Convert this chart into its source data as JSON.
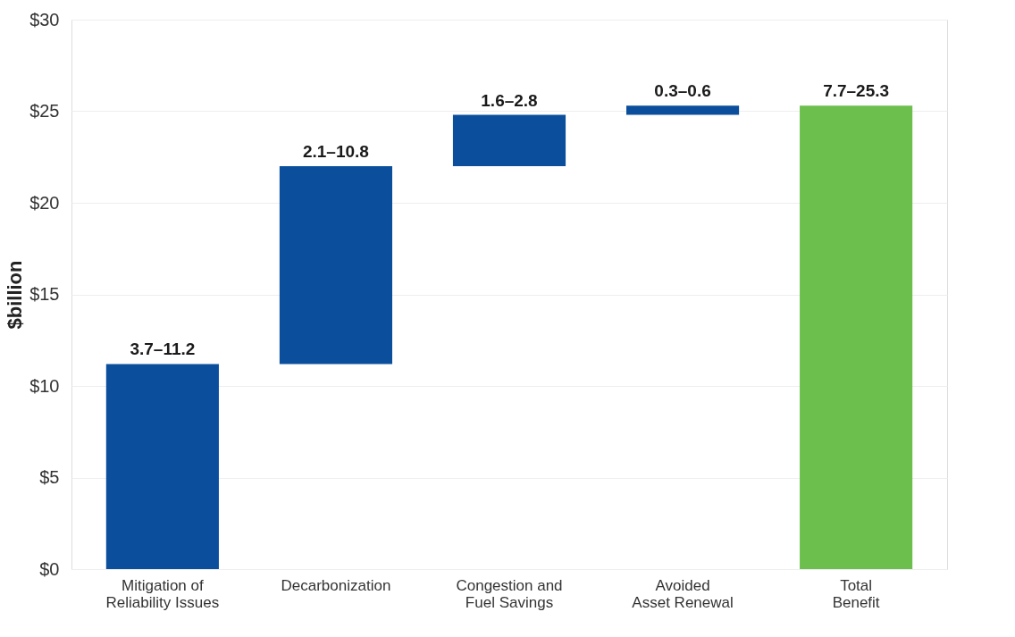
{
  "chart_data": {
    "type": "bar",
    "ylabel": "$billion",
    "categories": [
      "Mitigation of Reliability Issues",
      "Decarbonization",
      "Congestion and Fuel Savings",
      "Avoided Asset Renewal",
      "Total Benefit"
    ],
    "values": [
      11.2,
      10.8,
      2.8,
      0.5,
      25.3
    ],
    "base": [
      0,
      11.2,
      22.0,
      24.8,
      0
    ],
    "colors": [
      "#0b4f9c",
      "#0b4f9c",
      "#0b4f9c",
      "#0b4f9c",
      "#6cbf4d"
    ],
    "value_labels": [
      "3.7–11.2",
      "2.1–10.8",
      "1.6–2.8",
      "0.3–0.6",
      "7.7–25.3"
    ],
    "ylim": [
      0,
      30
    ],
    "yticks": [
      {
        "value": 0,
        "label": "$0"
      },
      {
        "value": 5,
        "label": "$5"
      },
      {
        "value": 10,
        "label": "$10"
      },
      {
        "value": 15,
        "label": "$15"
      },
      {
        "value": 20,
        "label": "$20"
      },
      {
        "value": 25,
        "label": "$25"
      },
      {
        "value": 30,
        "label": "$30"
      }
    ],
    "grid": "y"
  }
}
